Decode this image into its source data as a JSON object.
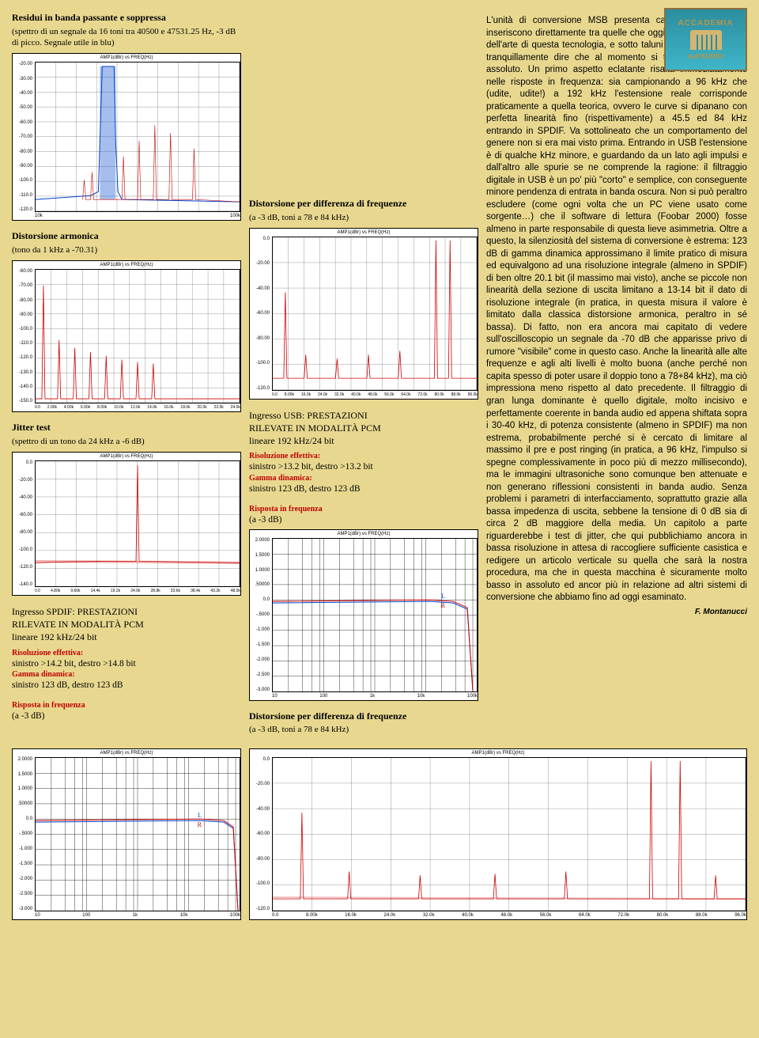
{
  "logo": {
    "top": "ACCADEMIA",
    "bottom_prefix": "dell'",
    "bottom": "AUDIO"
  },
  "chart1": {
    "title": "Residui in banda passante e soppressa",
    "subtitle": "(spettro di un segnale da 16 toni tra 40500 e 47531.25 Hz, -3 dB di picco. Segnale utile in blu)",
    "header": "AMP1(dBr)     vs     FREQ(Hz)",
    "y": [
      "-20.00",
      "-30.00",
      "-40.00",
      "-50.00",
      "-60.00",
      "-70.00",
      "-80.00",
      "-90.00",
      "-100.0",
      "-110.0",
      "-120.0"
    ],
    "x": [
      "10k",
      "100k"
    ]
  },
  "chart2": {
    "title": "Distorsione armonica",
    "subtitle": "(tono da 1 kHz a -70.31)",
    "header": "AMP1(dBr)     vs     FREQ(Hz)",
    "y": [
      "-60.00",
      "-70.00",
      "-80.00",
      "-90.00",
      "-100.0",
      "-110.0",
      "-120.0",
      "-130.0",
      "-140.0",
      "-150.0"
    ],
    "x": [
      "0.0",
      "2.00k",
      "4.00k",
      "6.00k",
      "8.00k",
      "10.0k",
      "12.0k",
      "14.0k",
      "16.0k",
      "18.0k",
      "20.0k",
      "22.0k",
      "24.0k"
    ]
  },
  "chart3": {
    "title": "Jitter test",
    "subtitle": "(spettro di un tono da 24 kHz a -6 dB)",
    "header": "AMP1(dBr)     vs     FREQ(Hz)",
    "y": [
      "0.0",
      "-20.00",
      "-40.00",
      "-60.00",
      "-80.00",
      "-100.0",
      "-120.0",
      "-140.0"
    ],
    "x": [
      "0.0",
      "4.80k",
      "9.60k",
      "14.4k",
      "19.2k",
      "24.0k",
      "28.8k",
      "33.6k",
      "38.4k",
      "43.2k",
      "48.0k"
    ]
  },
  "spdif": {
    "title_l1": "Ingresso SPDIF: PRESTAZIONI",
    "title_l2": "RILEVATE IN MODALITÀ PCM",
    "title_l3": "lineare 192 kHz/24 bit",
    "res_label": "Risoluzione effettiva:",
    "res_value": "sinistro >14.2 bit, destro >14.8 bit",
    "dyn_label": "Gamma dinamica:",
    "dyn_value": "sinistro 123 dB, destro 123 dB",
    "resp_label": "Risposta in frequenza",
    "resp_sub": "(a -3 dB)"
  },
  "chart4": {
    "header": "AMP1(dBr)     vs     FREQ(Hz)",
    "y": [
      "2.0000",
      "1.5000",
      "1.0000",
      ".50000",
      "0.0",
      "-.5000",
      "-1.000",
      "-1.500",
      "-2.000",
      "-2.500",
      "-3.000"
    ],
    "x": [
      "10",
      "100",
      "1k",
      "10k",
      "100k"
    ],
    "label_L": "L",
    "label_R": "R"
  },
  "chart5": {
    "title": "Distorsione per differenza di frequenze",
    "subtitle": "(a -3 dB, toni a 78 e 84 kHz)",
    "header": "AMP1(dBr)     vs     FREQ(Hz)",
    "y": [
      "0.0",
      "-20.00",
      "-40.00",
      "-60.00",
      "-80.00",
      "-100.0",
      "-120.0"
    ],
    "x": [
      "0.0",
      "8.00k",
      "16.0k",
      "24.0k",
      "32.0k",
      "40.0k",
      "48.0k",
      "56.0k",
      "64.0k",
      "72.0k",
      "80.0k",
      "88.0k",
      "96.0k"
    ]
  },
  "usb": {
    "title_l1": "Ingresso USB: PRESTAZIONI",
    "title_l2": "RILEVATE IN MODALITÀ PCM",
    "title_l3": "lineare 192 kHz/24 bit",
    "res_label": "Risoluzione effettiva:",
    "res_value": "sinistro >13.2 bit, destro >13.2 bit",
    "dyn_label": "Gamma dinamica:",
    "dyn_value": "sinistro 123 dB, destro 123 dB",
    "resp_label": "Risposta in frequenza",
    "resp_sub": "(a -3 dB)"
  },
  "chart6": {
    "header": "AMP1(dBr)     vs     FREQ(Hz)",
    "y": [
      "2.0000",
      "1.5000",
      "1.0000",
      ".50000",
      "0.0",
      "-.5000",
      "-1.000",
      "-1.500",
      "-2.000",
      "-2.500",
      "-3.000"
    ],
    "x": [
      "10",
      "100",
      "1k",
      "10k",
      "100k"
    ],
    "label_L": "L",
    "label_R": "R"
  },
  "chart7": {
    "title": "Distorsione per differenza di frequenze",
    "subtitle": "(a -3 dB, toni a 78 e 84 kHz)",
    "header": "AMP1(dBr)     vs     FREQ(Hz)",
    "y": [
      "0.0",
      "-20.00",
      "-40.00",
      "-60.00",
      "-80.00",
      "-100.0",
      "-120.0"
    ],
    "x": [
      "0.0",
      "8.00k",
      "16.0k",
      "24.0k",
      "32.0k",
      "40.0k",
      "48.0k",
      "56.0k",
      "64.0k",
      "72.0k",
      "80.0k",
      "88.0k",
      "96.0k"
    ]
  },
  "article": {
    "text": "L'unità di conversione MSB presenta caratteristiche che la inseriscono direttamente tra quelle che oggi definiscono lo stato dell'arte di questa tecnologia, e sotto taluni parametri possiamo tranquillamente dire che al momento si tratta di un unicum assoluto. Un primo aspetto eclatante risalta immediatamente nelle risposte in frequenza: sia campionando a 96 kHz che (udite, udite!) a 192 kHz l'estensione reale corrisponde praticamente a quella teorica, ovvero le curve si dipanano con perfetta linearità fino (rispettivamente) a 45.5 ed 84 kHz entrando in SPDIF. Va sottolineato che un comportamento del genere non si era mai visto prima. Entrando in USB l'estensione è di qualche kHz minore, e guardando da un lato agli impulsi e dall'altro alle spurie se ne comprende la ragione: il filtraggio digitale in USB è un po' più \"corto\" e semplice, con conseguente minore pendenza di entrata in banda oscura. Non si può peraltro escludere (come ogni volta che un PC viene usato come sorgente…) che il software di lettura (Foobar 2000) fosse almeno in parte responsabile di questa lieve asimmetria. Oltre a questo, la silenziosità del sistema di conversione è estrema: 123 dB di gamma dinamica approssimano il limite pratico di misura ed equivalgono ad una risoluzione integrale (almeno in SPDIF) di ben oltre 20.1 bit (il massimo mai visto), anche se piccole non linearità della sezione di uscita limitano a 13-14 bit il dato di risoluzione integrale (in pratica, in questa misura il valore è limitato dalla classica distorsione armonica, peraltro in sé bassa). Di fatto, non era ancora mai capitato di vedere sull'oscilloscopio un segnale da -70 dB che apparisse privo di rumore \"visibile\" come in questo caso. Anche la linearità alle alte frequenze e agli alti livelli è molto buona (anche perché non capita spesso di poter usare il doppio tono a 78+84 kHz), ma ciò impressiona meno rispetto al dato precedente. Il filtraggio di gran lunga dominante è quello digitale, molto incisivo e perfettamente coerente in banda audio ed appena shiftata sopra i 30-40 kHz, di potenza consistente (almeno in SPDIF) ma non estrema, probabilmente perché si è cercato di limitare al massimo il pre e post ringing (in pratica, a 96 kHz, l'impulso si spegne complessivamente in poco più di mezzo millisecondo), ma le immagini ultrasoniche sono comunque ben attenuate e non generano riflessioni consistenti in banda audio. Senza problemi i parametri di interfacciamento, soprattutto grazie alla bassa impedenza di uscita, sebbene la tensione di 0 dB sia di circa 2 dB maggiore della media. Un capitolo a parte riguarderebbe i test di jitter, che qui pubblichiamo ancora in bassa risoluzione in attesa di raccogliere sufficiente casistica e redigere un articolo verticale su quella che sarà la nostra procedura, ma che in questa macchina è sicuramente molto basso in assoluto ed ancor più in relazione ad altri sistemi di conversione che abbiamo fino ad oggi esaminato.",
    "author": "F. Montanucci"
  }
}
